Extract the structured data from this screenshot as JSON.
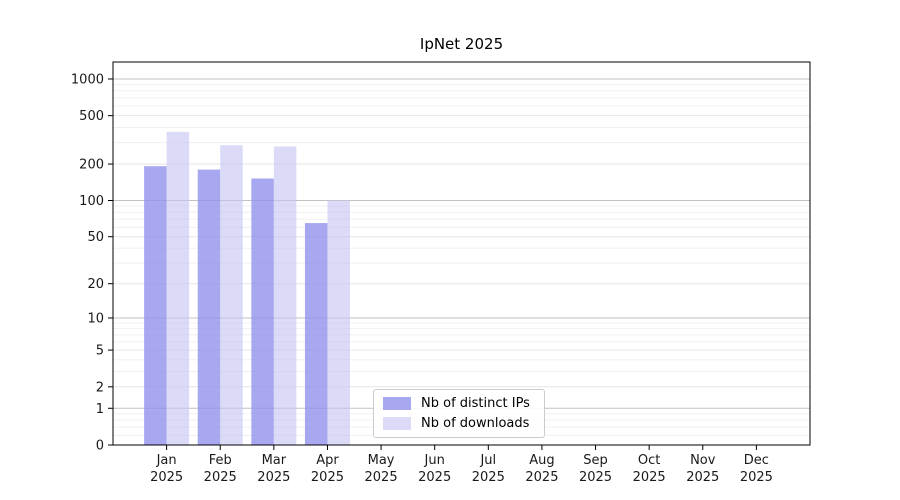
{
  "chart_data": {
    "type": "bar",
    "title": "IpNet 2025",
    "year": "2025",
    "months": [
      "Jan",
      "Feb",
      "Mar",
      "Apr",
      "May",
      "Jun",
      "Jul",
      "Aug",
      "Sep",
      "Oct",
      "Nov",
      "Dec"
    ],
    "series": [
      {
        "name": "Nb of distinct IPs",
        "color": "#9292ec",
        "alpha": 0.8,
        "values": [
          192,
          180,
          152,
          65,
          0,
          0,
          0,
          0,
          0,
          0,
          0,
          0
        ]
      },
      {
        "name": "Nb of downloads",
        "color": "#c3c3f3",
        "alpha": 0.6,
        "values": [
          368,
          286,
          279,
          100,
          0,
          0,
          0,
          0,
          0,
          0,
          0,
          0
        ]
      }
    ],
    "yticks": [
      0,
      1,
      2,
      5,
      10,
      20,
      50,
      100,
      200,
      500,
      1000
    ],
    "minor_gridlines": [
      0.2,
      0.4,
      0.6,
      0.8,
      3,
      4,
      6,
      7,
      8,
      9,
      30,
      40,
      60,
      70,
      80,
      90,
      300,
      400,
      600,
      700,
      800,
      900
    ],
    "scale": "log10(1+v)",
    "ylim": [
      0,
      1380
    ],
    "grid": true,
    "legend_position": "inside-bottom-center"
  },
  "colors": {
    "grid_minor": "#f0f0f0",
    "grid_major": "#e6e6e6",
    "grid_decade": "#c2c2c2",
    "axis": "#000000",
    "text": "#1a1a1a",
    "legend_border": "#cccccc",
    "background": "#ffffff"
  }
}
